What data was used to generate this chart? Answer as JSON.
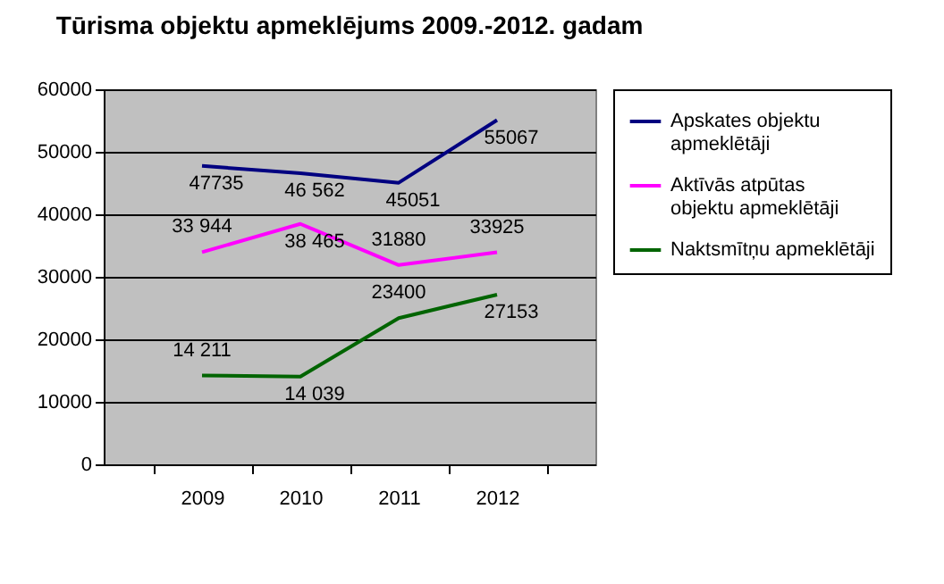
{
  "chart_data": {
    "type": "line",
    "title": "Tūrisma objektu apmeklējums 2009.-2012. gadam",
    "categories": [
      "2009",
      "2010",
      "2011",
      "2012"
    ],
    "series": [
      {
        "name": "Apskates objektu apmeklētāji",
        "color": "#000080",
        "values": [
          47735,
          46562,
          45051,
          55067
        ],
        "value_labels": [
          "47735",
          "46 562",
          "45051",
          "55067"
        ]
      },
      {
        "name": "Aktīvās atpūtas objektu apmeklētāji",
        "color": "#ff00ff",
        "values": [
          33944,
          38465,
          31880,
          33925
        ],
        "value_labels": [
          "33 944",
          "38 465",
          "31880",
          "33925"
        ]
      },
      {
        "name": "Naktsmītņu apmeklētāji",
        "color": "#006400",
        "values": [
          14211,
          14039,
          23400,
          27153
        ],
        "value_labels": [
          "14 211",
          "14 039",
          "23400",
          "27153"
        ]
      }
    ],
    "ylim": [
      0,
      60000
    ],
    "yticks": [
      0,
      10000,
      20000,
      30000,
      40000,
      50000,
      60000
    ],
    "grid": "y",
    "legend": "right",
    "marker": "none",
    "line_style": "solid"
  }
}
